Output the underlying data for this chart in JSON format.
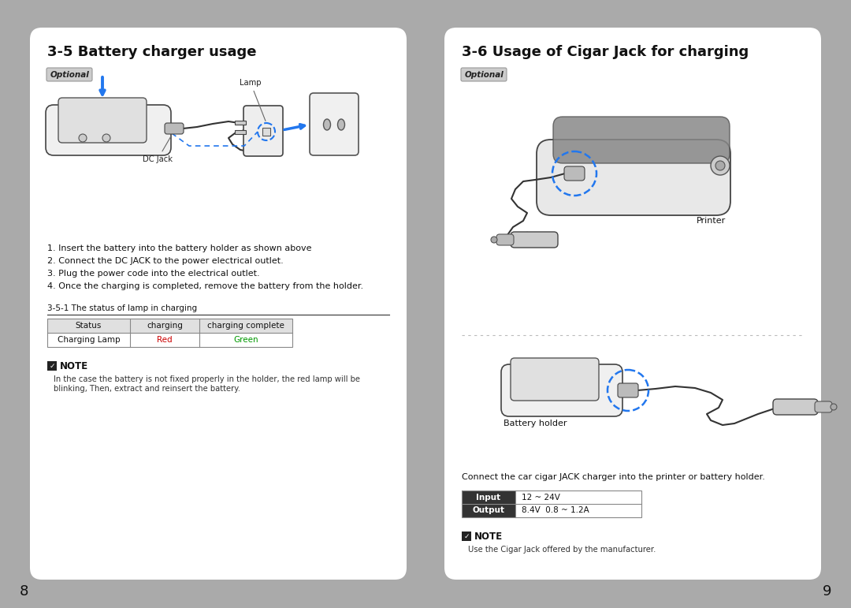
{
  "bg_color": "#aaaaaa",
  "card_color": "#ffffff",
  "page_num_left": "8",
  "page_num_right": "9",
  "left_title": "3-5 Battery charger usage",
  "left_optional_text": "Optional",
  "left_steps": [
    "1. Insert the battery into the battery holder as shown above",
    "2. Connect the DC JACK to the power electrical outlet.",
    "3. Plug the power code into the electrical outlet.",
    "4. Once the charging is completed, remove the battery from the holder."
  ],
  "left_table_title": "3-5-1 The status of lamp in charging",
  "left_table_headers": [
    "Status",
    "charging",
    "charging complete"
  ],
  "left_table_row": [
    "Charging Lamp",
    "Red",
    "Green"
  ],
  "left_table_row_colors": [
    "#111111",
    "#cc0000",
    "#009900"
  ],
  "left_note_title": "NOTE",
  "left_note_line1": "In the case the battery is not fixed properly in the holder, the red lamp will be",
  "left_note_line2": "blinking, Then, extract and reinsert the battery.",
  "right_title": "3-6 Usage of Cigar Jack for charging",
  "right_optional_text": "Optional",
  "right_printer_label": "Printer",
  "right_battery_label": "Battery holder",
  "right_connect_text": "Connect the car cigar JACK charger into the printer or battery holder.",
  "right_table_headers": [
    "Input",
    "Output"
  ],
  "right_table_values": [
    "12 ~ 24V",
    "8.4V  0.8 ~ 1.2A"
  ],
  "right_note_title": "NOTE",
  "right_note_text": "Use the Cigar Jack offered by the manufacturer.",
  "title_fontsize": 13,
  "body_fontsize": 8.0,
  "small_fontsize": 7.2,
  "optional_fontsize": 7.5,
  "table_fontsize": 7.5,
  "note_title_fontsize": 8.5
}
